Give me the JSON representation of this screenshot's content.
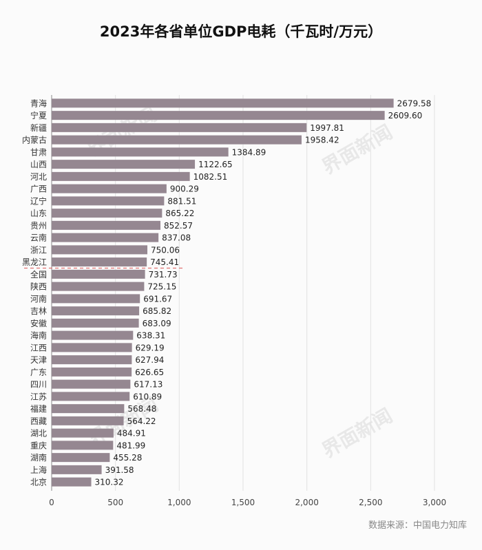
{
  "chart_data": {
    "type": "bar",
    "orientation": "horizontal",
    "title": "2023年各省单位GDP电耗（千瓦时/万元）",
    "categories": [
      "青海",
      "宁夏",
      "新疆",
      "内蒙古",
      "甘肃",
      "山西",
      "河北",
      "广西",
      "辽宁",
      "山东",
      "贵州",
      "云南",
      "浙江",
      "黑龙江",
      "全国",
      "陕西",
      "河南",
      "吉林",
      "安徽",
      "海南",
      "江西",
      "天津",
      "广东",
      "四川",
      "江苏",
      "福建",
      "西藏",
      "湖北",
      "重庆",
      "湖南",
      "上海",
      "北京"
    ],
    "values": [
      2679.58,
      2609.6,
      1997.81,
      1958.42,
      1384.89,
      1122.65,
      1082.51,
      900.29,
      881.51,
      865.22,
      852.57,
      837.08,
      750.06,
      745.41,
      731.73,
      725.15,
      691.67,
      685.82,
      683.09,
      638.31,
      629.19,
      627.94,
      626.65,
      617.13,
      610.89,
      568.48,
      564.22,
      484.91,
      481.99,
      455.28,
      391.58,
      310.32
    ],
    "value_labels": [
      "2679.58",
      "2609.60",
      "1997.81",
      "1958.42",
      "1384.89",
      "1122.65",
      "1082.51",
      "900.29",
      "881.51",
      "865.22",
      "852.57",
      "837.08",
      "750.06",
      "745.41",
      "731.73",
      "725.15",
      "691.67",
      "685.82",
      "683.09",
      "638.31",
      "629.19",
      "627.94",
      "626.65",
      "617.13",
      "610.89",
      "568.48",
      "564.22",
      "484.91",
      "481.99",
      "455.28",
      "391.58",
      "310.32"
    ],
    "xlim": [
      0,
      3000
    ],
    "x_ticks": [
      0,
      500,
      1000,
      1500,
      2000,
      2500,
      3000
    ],
    "x_tick_labels": [
      "0",
      "500",
      "1,000",
      "1,500",
      "2,000",
      "2,500",
      "3,000"
    ],
    "grid": true,
    "reference_line_after": "黑龙江",
    "bar_color": "#958791",
    "reference_line_color": "#e07070"
  },
  "source_text": "数据来源：中国电力知库",
  "watermark_text": "界面新闻"
}
